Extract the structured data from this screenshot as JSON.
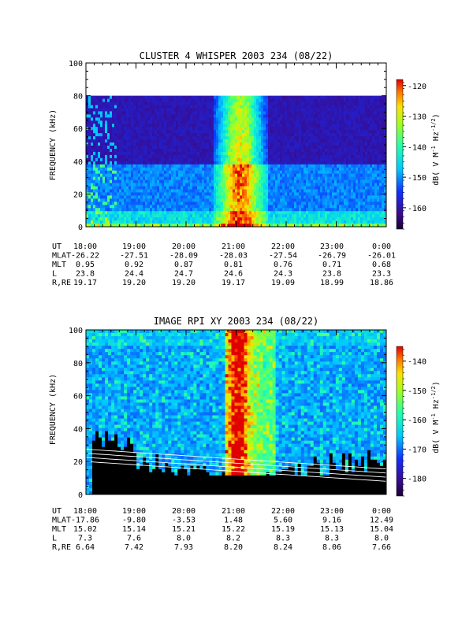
{
  "chart_data": [
    {
      "type": "heatmap",
      "title": "CLUSTER 4 WHISPER 2003 234 (08/22)",
      "ylabel": "FREQUENCY (kHz)",
      "ylim": [
        0,
        100
      ],
      "yticks": [
        "0",
        "20",
        "40",
        "60",
        "80",
        "100"
      ],
      "xlim": [
        "18:00",
        "0:00"
      ],
      "colorbar": {
        "label": "dB( V M-1 Hz-1/2)",
        "range": [
          -167,
          -118
        ],
        "ticks": [
          "-120",
          "-130",
          "-140",
          "-150",
          "-160"
        ]
      },
      "ephemeris": {
        "rows": [
          {
            "name": "UT",
            "values": [
              "18:00",
              "19:00",
              "20:00",
              "21:00",
              "22:00",
              "23:00",
              "0:00"
            ]
          },
          {
            "name": "MLAT",
            "values": [
              "-26.22",
              "-27.51",
              "-28.09",
              "-28.03",
              "-27.54",
              "-26.79",
              "-26.01"
            ]
          },
          {
            "name": "MLT",
            "values": [
              "0.95",
              "0.92",
              "0.87",
              "0.81",
              "0.76",
              "0.71",
              "0.68"
            ]
          },
          {
            "name": "L",
            "values": [
              "23.8",
              "24.4",
              "24.7",
              "24.6",
              "24.3",
              "23.8",
              "23.3"
            ]
          },
          {
            "name": "R,RE",
            "values": [
              "19.17",
              "19.20",
              "19.20",
              "19.17",
              "19.09",
              "18.99",
              "18.86"
            ]
          }
        ]
      }
    },
    {
      "type": "heatmap",
      "title": "IMAGE RPI XY 2003 234 (08/22)",
      "ylabel": "FREQUENCY (kHz)",
      "ylim": [
        0,
        100
      ],
      "yticks": [
        "0",
        "20",
        "40",
        "60",
        "80",
        "100"
      ],
      "xlim": [
        "18:00",
        "0:00"
      ],
      "colorbar": {
        "label": "dB( V M-1 Hz-1/2)",
        "range": [
          -186,
          -135
        ],
        "ticks": [
          "-140",
          "-150",
          "-160",
          "-170",
          "-180"
        ]
      },
      "ephemeris": {
        "rows": [
          {
            "name": "UT",
            "values": [
              "18:00",
              "19:00",
              "20:00",
              "21:00",
              "22:00",
              "23:00",
              "0:00"
            ]
          },
          {
            "name": "MLAT",
            "values": [
              "-17.86",
              "-9.80",
              "-3.53",
              "1.48",
              "5.60",
              "9.16",
              "12.49"
            ]
          },
          {
            "name": "MLT",
            "values": [
              "15.02",
              "15.14",
              "15.21",
              "15.22",
              "15.19",
              "15.13",
              "15.04"
            ]
          },
          {
            "name": "L",
            "values": [
              "7.3",
              "7.6",
              "8.0",
              "8.2",
              "8.3",
              "8.3",
              "8.0"
            ]
          },
          {
            "name": "R,RE",
            "values": [
              "6.64",
              "7.42",
              "7.93",
              "8.20",
              "8.24",
              "8.06",
              "7.66"
            ]
          }
        ]
      }
    }
  ]
}
